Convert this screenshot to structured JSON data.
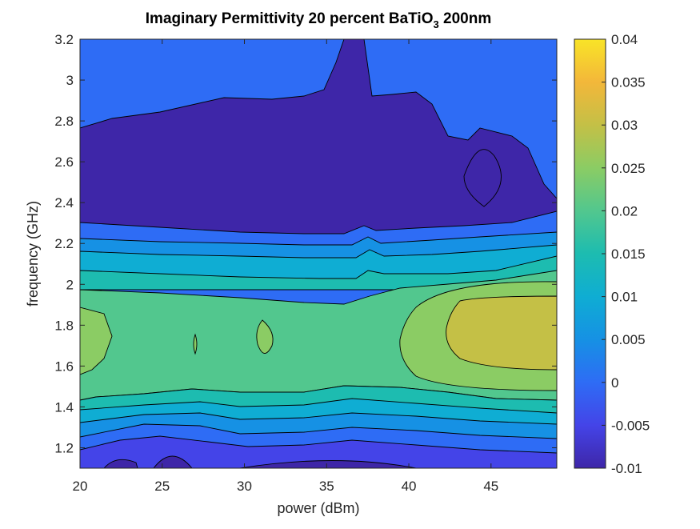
{
  "chart_data": {
    "type": "contour",
    "title": "Imaginary Permittivity 20 percent BaTiO",
    "title_subscript": "3",
    "title_suffix": " 200nm",
    "xlabel": "power (dBm)",
    "ylabel": "frequency (GHz)",
    "xlim": [
      20,
      49
    ],
    "ylim": [
      1.1,
      3.2
    ],
    "xticks": [
      20,
      25,
      30,
      35,
      40,
      45
    ],
    "yticks": [
      1.2,
      1.4,
      1.6,
      1.8,
      2,
      2.2,
      2.4,
      2.6,
      2.8,
      3,
      3.2
    ],
    "xtick_labels": [
      "20",
      "25",
      "30",
      "35",
      "40",
      "45"
    ],
    "ytick_labels": [
      "1.2",
      "1.4",
      "1.6",
      "1.8",
      "2",
      "2.2",
      "2.4",
      "2.6",
      "2.8",
      "3",
      "3.2"
    ],
    "colorbar": {
      "range": [
        -0.01,
        0.04
      ],
      "ticks": [
        -0.01,
        -0.005,
        0,
        0.005,
        0.01,
        0.015,
        0.02,
        0.025,
        0.03,
        0.035,
        0.04
      ],
      "tick_labels": [
        "-0.01",
        "-0.005",
        "0",
        "0.005",
        "0.01",
        "0.015",
        "0.02",
        "0.025",
        "0.03",
        "0.035",
        "0.04"
      ],
      "colormap": "parula",
      "colors": [
        "#3e26a8",
        "#4444e8",
        "#2e6cf5",
        "#1691e4",
        "#0fadd3",
        "#1dbcb0",
        "#52c78e",
        "#8bcc64",
        "#c4c046",
        "#f3b73a",
        "#f9e427"
      ]
    },
    "regions": [
      {
        "level": -0.005,
        "desc": "upper background above 2.8 GHz"
      },
      {
        "level": -0.01,
        "desc": "low band 2.3-2.8 GHz with spike near 37 dBm"
      },
      {
        "level": 0.005,
        "desc": "graded layers 2.0-2.3 GHz"
      },
      {
        "level": 0.02,
        "desc": "central plateau 1.45-1.95 GHz"
      },
      {
        "level": 0.025,
        "desc": "lobes near 21, 31, 40 dBm"
      },
      {
        "level": 0.03,
        "desc": "hot spot 43-49 dBm, 1.5-1.95 GHz"
      },
      {
        "level": -0.01,
        "desc": "bottom low pockets below 1.15 GHz"
      }
    ],
    "grid": false,
    "legend": "colorbar-right"
  }
}
